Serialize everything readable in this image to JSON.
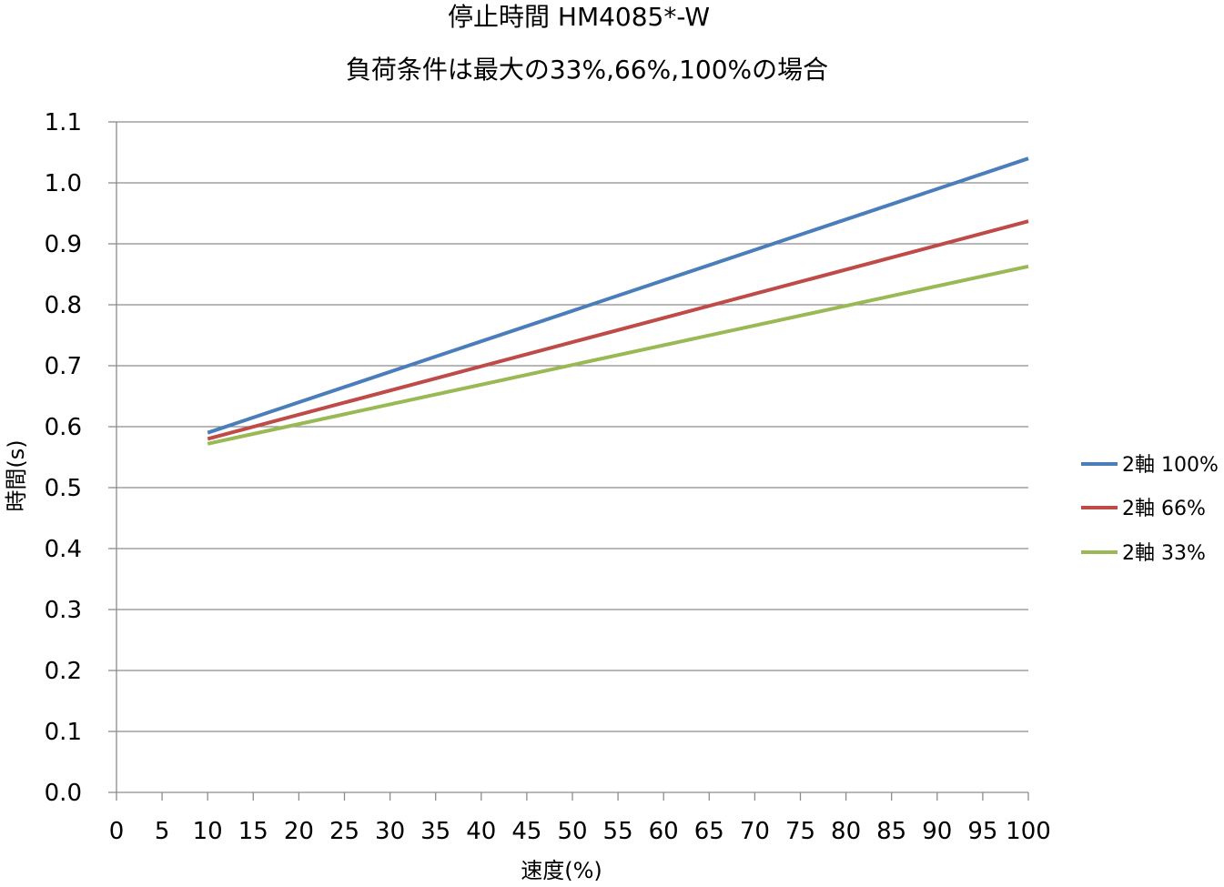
{
  "chart_data": {
    "type": "line",
    "title": "停止時間 HM4085*-W",
    "subtitle": "負荷条件は最大の33%,66%,100%の場合",
    "xlabel": "速度(%)",
    "ylabel": "時間(s)",
    "xlim": [
      0,
      100
    ],
    "ylim": [
      0.0,
      1.1
    ],
    "xticks": [
      "0",
      "5",
      "10",
      "15",
      "20",
      "25",
      "30",
      "35",
      "40",
      "45",
      "50",
      "55",
      "60",
      "65",
      "70",
      "75",
      "80",
      "85",
      "90",
      "95",
      "100"
    ],
    "yticks": [
      "0.0",
      "0.1",
      "0.2",
      "0.3",
      "0.4",
      "0.5",
      "0.6",
      "0.7",
      "0.8",
      "0.9",
      "1.0",
      "1.1"
    ],
    "grid": "horizontal",
    "legend_position": "right",
    "x": [
      10,
      100
    ],
    "series": [
      {
        "name": "2軸 100%",
        "color": "#4a7ebb",
        "values": [
          0.59,
          1.04
        ]
      },
      {
        "name": "2軸 66%",
        "color": "#be4b48",
        "values": [
          0.58,
          0.937
        ]
      },
      {
        "name": "2軸 33%",
        "color": "#98b954",
        "values": [
          0.572,
          0.863
        ]
      }
    ]
  }
}
